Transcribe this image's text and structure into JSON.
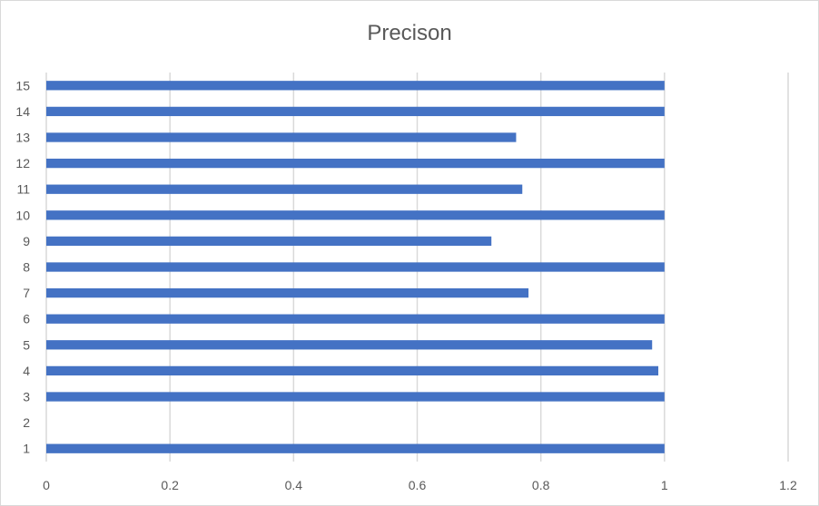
{
  "chart_data": {
    "type": "bar",
    "orientation": "horizontal",
    "title": "Precison",
    "xlabel": "",
    "ylabel": "",
    "categories": [
      "1",
      "2",
      "3",
      "4",
      "5",
      "6",
      "7",
      "8",
      "9",
      "10",
      "11",
      "12",
      "13",
      "14",
      "15"
    ],
    "values": [
      1,
      0,
      1,
      0.99,
      0.98,
      1,
      0.78,
      1,
      0.72,
      1,
      0.77,
      1,
      0.76,
      1,
      1
    ],
    "xlim": [
      0,
      1.2
    ],
    "xticks": [
      "0",
      "0.2",
      "0.4",
      "0.6",
      "0.8",
      "1",
      "1.2"
    ],
    "grid": "vertical",
    "legend": "none",
    "bar_color": "#4472c4",
    "grid_color": "#d9d9d9"
  }
}
